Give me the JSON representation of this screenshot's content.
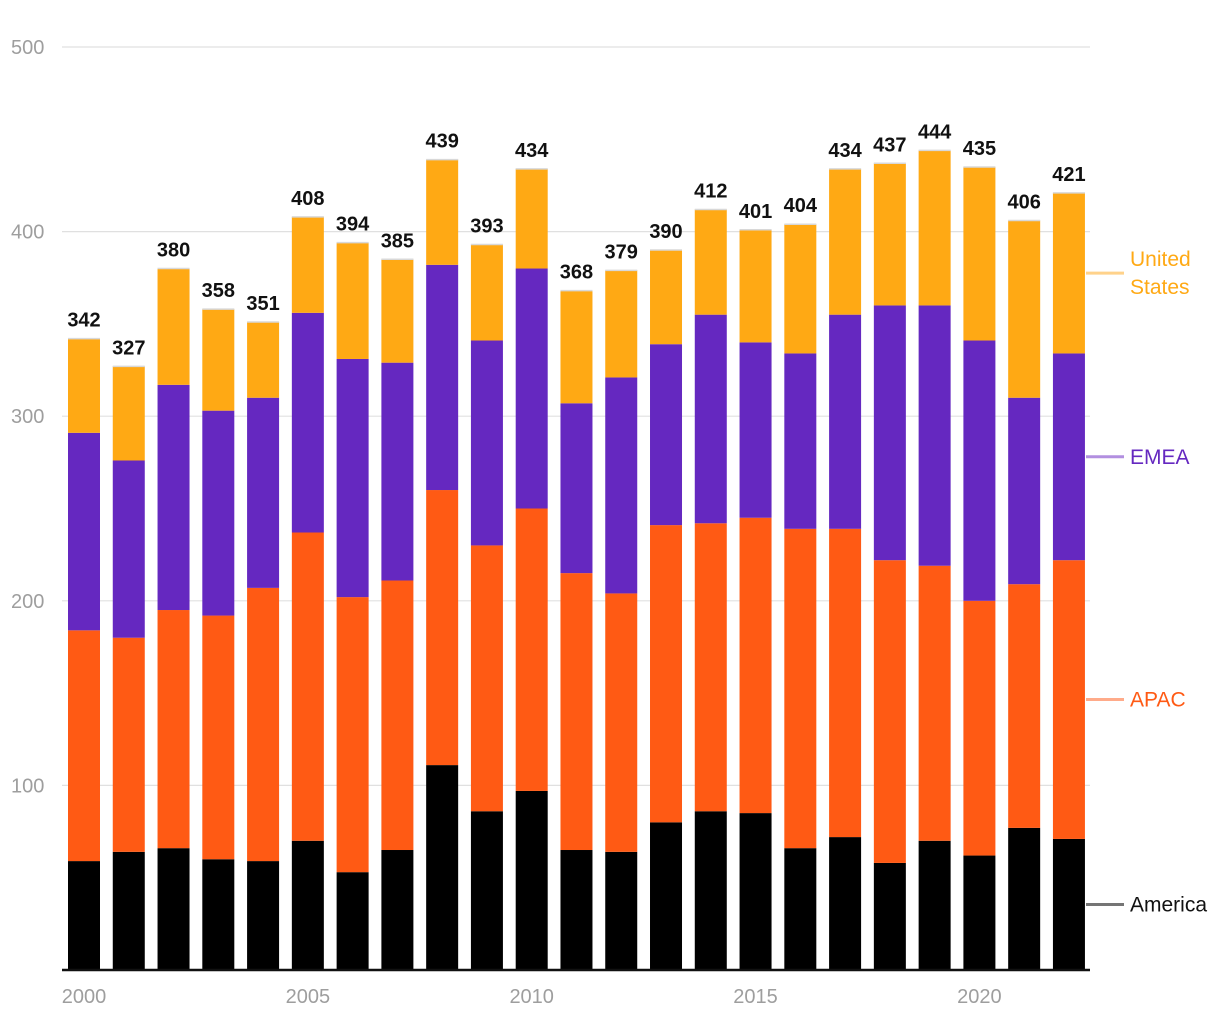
{
  "chart_data": {
    "type": "bar",
    "stacked": true,
    "title": "",
    "xlabel": "",
    "ylabel": "",
    "ylim": [
      0,
      500
    ],
    "yticks": [
      100,
      200,
      300,
      400,
      500
    ],
    "xtick_labels": [
      "2000",
      "2005",
      "2010",
      "2015",
      "2020"
    ],
    "grid": true,
    "legend_placement": "right, inline labels",
    "categories": [
      2000,
      2001,
      2002,
      2003,
      2004,
      2005,
      2006,
      2007,
      2008,
      2009,
      2010,
      2011,
      2012,
      2013,
      2014,
      2015,
      2016,
      2017,
      2018,
      2019,
      2020,
      2021,
      2022
    ],
    "series": [
      {
        "name": "Americas",
        "legend_label": "America",
        "color": "#000000",
        "line_color": "#757575",
        "values": [
          59,
          64,
          66,
          60,
          59,
          70,
          53,
          65,
          111,
          86,
          97,
          65,
          64,
          80,
          86,
          85,
          66,
          72,
          58,
          70,
          62,
          77,
          71
        ]
      },
      {
        "name": "APAC",
        "legend_label": "APAC",
        "color": "#ff5a14",
        "line_color": "#ffab8a",
        "values": [
          125,
          116,
          129,
          132,
          148,
          167,
          149,
          146,
          149,
          144,
          153,
          150,
          140,
          161,
          156,
          160,
          173,
          167,
          164,
          149,
          138,
          132,
          151
        ]
      },
      {
        "name": "EMEA",
        "legend_label": "EMEA",
        "color": "#6528c0",
        "line_color": "#b28fe0",
        "values": [
          107,
          96,
          122,
          111,
          103,
          119,
          129,
          118,
          122,
          111,
          130,
          92,
          117,
          98,
          113,
          95,
          95,
          116,
          138,
          141,
          141,
          101,
          112
        ]
      },
      {
        "name": "United States",
        "legend_label": "United\nStates",
        "color": "#ffa914",
        "line_color": "#ffd28a",
        "values": [
          51,
          51,
          63,
          55,
          41,
          52,
          63,
          56,
          57,
          52,
          54,
          61,
          58,
          51,
          57,
          61,
          70,
          79,
          77,
          84,
          94,
          96,
          87
        ]
      }
    ],
    "totals": [
      342,
      327,
      380,
      358,
      351,
      408,
      394,
      385,
      439,
      393,
      434,
      368,
      379,
      390,
      412,
      401,
      404,
      434,
      437,
      444,
      435,
      406,
      421
    ]
  }
}
